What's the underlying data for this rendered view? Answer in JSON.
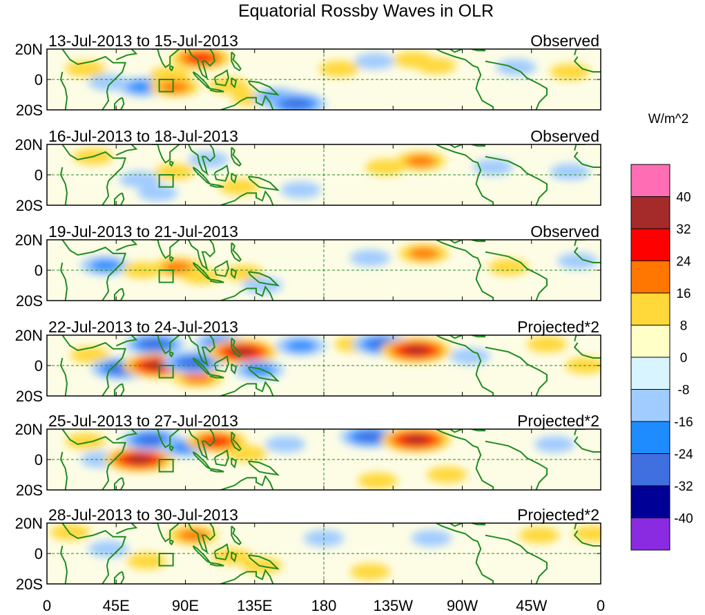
{
  "chart_data": {
    "type": "heatmap",
    "title": "Equatorial Rossby Waves in OLR",
    "units": "W/m^2",
    "x_ticks": [
      "0",
      "45E",
      "90E",
      "135E",
      "180",
      "135W",
      "90W",
      "45W",
      "0"
    ],
    "x_range_deg_east": [
      0,
      360
    ],
    "y_ticks": [
      "20N",
      "0",
      "20S"
    ],
    "y_range_deg": [
      -20,
      20
    ],
    "colorbar": {
      "levels": [
        "40",
        "32",
        "24",
        "16",
        "8",
        "0",
        "-8",
        "-16",
        "-24",
        "-32",
        "-40"
      ],
      "colors": [
        "#ff6eb4",
        "#a52a2a",
        "#ff0000",
        "#ff7700",
        "#ffd83a",
        "#ffffc8",
        "#d8f4ff",
        "#a0ccff",
        "#1e8cff",
        "#4070e0",
        "#000096",
        "#8a2be2"
      ]
    },
    "panels": [
      {
        "period": "13-Jul-2013 to 15-Jul-2013",
        "kind": "Observed",
        "anomalies": [
          {
            "lon": 25,
            "lat": 7,
            "value": 8
          },
          {
            "lon": 40,
            "lat": -2,
            "value": -8
          },
          {
            "lon": 62,
            "lat": -5,
            "value": -16
          },
          {
            "lon": 80,
            "lat": 3,
            "value": 8
          },
          {
            "lon": 83,
            "lat": -5,
            "value": 16
          },
          {
            "lon": 100,
            "lat": 14,
            "value": 24
          },
          {
            "lon": 118,
            "lat": -4,
            "value": 8
          },
          {
            "lon": 133,
            "lat": -12,
            "value": 8
          },
          {
            "lon": 150,
            "lat": -12,
            "value": -16
          },
          {
            "lon": 162,
            "lat": -16,
            "value": -24
          },
          {
            "lon": 190,
            "lat": 7,
            "value": 8
          },
          {
            "lon": 213,
            "lat": 12,
            "value": -8
          },
          {
            "lon": 238,
            "lat": 13,
            "value": 8
          },
          {
            "lon": 253,
            "lat": 9,
            "value": 8
          },
          {
            "lon": 305,
            "lat": 8,
            "value": -8
          },
          {
            "lon": 340,
            "lat": 5,
            "value": 8
          }
        ]
      },
      {
        "period": "16-Jul-2013 to 18-Jul-2013",
        "kind": "Observed",
        "anomalies": [
          {
            "lon": 30,
            "lat": 12,
            "value": 8
          },
          {
            "lon": 60,
            "lat": -3,
            "value": -8
          },
          {
            "lon": 72,
            "lat": -12,
            "value": -8
          },
          {
            "lon": 83,
            "lat": 2,
            "value": 8
          },
          {
            "lon": 105,
            "lat": 10,
            "value": -8
          },
          {
            "lon": 125,
            "lat": -8,
            "value": 8
          },
          {
            "lon": 165,
            "lat": -10,
            "value": -8
          },
          {
            "lon": 243,
            "lat": 9,
            "value": 16
          },
          {
            "lon": 220,
            "lat": 5,
            "value": 8
          },
          {
            "lon": 290,
            "lat": 5,
            "value": -8
          },
          {
            "lon": 340,
            "lat": 2,
            "value": -8
          }
        ]
      },
      {
        "period": "19-Jul-2013 to 21-Jul-2013",
        "kind": "Observed",
        "anomalies": [
          {
            "lon": 38,
            "lat": 3,
            "value": -16
          },
          {
            "lon": 62,
            "lat": 0,
            "value": 8
          },
          {
            "lon": 85,
            "lat": 2,
            "value": 16
          },
          {
            "lon": 100,
            "lat": -4,
            "value": 8
          },
          {
            "lon": 128,
            "lat": -2,
            "value": 8
          },
          {
            "lon": 140,
            "lat": -10,
            "value": -8
          },
          {
            "lon": 210,
            "lat": 8,
            "value": -8
          },
          {
            "lon": 245,
            "lat": 11,
            "value": 16
          },
          {
            "lon": 300,
            "lat": 2,
            "value": 8
          },
          {
            "lon": 345,
            "lat": 6,
            "value": -8
          }
        ]
      },
      {
        "period": "22-Jul-2013 to 24-Jul-2013",
        "kind": "Projected*2",
        "anomalies": [
          {
            "lon": 28,
            "lat": 7,
            "value": 8
          },
          {
            "lon": 48,
            "lat": -2,
            "value": -24
          },
          {
            "lon": 70,
            "lat": 14,
            "value": -24
          },
          {
            "lon": 72,
            "lat": 0,
            "value": 32
          },
          {
            "lon": 98,
            "lat": -8,
            "value": 16
          },
          {
            "lon": 95,
            "lat": 2,
            "value": -24
          },
          {
            "lon": 112,
            "lat": 15,
            "value": -16
          },
          {
            "lon": 127,
            "lat": 9,
            "value": 32
          },
          {
            "lon": 138,
            "lat": -3,
            "value": -16
          },
          {
            "lon": 165,
            "lat": 13,
            "value": -16
          },
          {
            "lon": 200,
            "lat": 14,
            "value": 8
          },
          {
            "lon": 218,
            "lat": 14,
            "value": -24
          },
          {
            "lon": 240,
            "lat": 10,
            "value": 32
          },
          {
            "lon": 275,
            "lat": 6,
            "value": -8
          },
          {
            "lon": 325,
            "lat": 14,
            "value": 8
          },
          {
            "lon": 350,
            "lat": 0,
            "value": 8
          }
        ]
      },
      {
        "period": "25-Jul-2013 to 27-Jul-2013",
        "kind": "Projected*2",
        "anomalies": [
          {
            "lon": 25,
            "lat": 12,
            "value": 8
          },
          {
            "lon": 35,
            "lat": 0,
            "value": -8
          },
          {
            "lon": 60,
            "lat": 0,
            "value": 32
          },
          {
            "lon": 68,
            "lat": 13,
            "value": -24
          },
          {
            "lon": 90,
            "lat": 8,
            "value": -16
          },
          {
            "lon": 110,
            "lat": 12,
            "value": 24
          },
          {
            "lon": 130,
            "lat": 4,
            "value": 8
          },
          {
            "lon": 155,
            "lat": 10,
            "value": -8
          },
          {
            "lon": 210,
            "lat": 15,
            "value": -24
          },
          {
            "lon": 240,
            "lat": 13,
            "value": 32
          },
          {
            "lon": 215,
            "lat": -14,
            "value": 8
          },
          {
            "lon": 260,
            "lat": -10,
            "value": 8
          },
          {
            "lon": 330,
            "lat": 10,
            "value": -8
          }
        ]
      },
      {
        "period": "28-Jul-2013 to 30-Jul-2013",
        "kind": "Projected*2",
        "anomalies": [
          {
            "lon": 15,
            "lat": 14,
            "value": 8
          },
          {
            "lon": 40,
            "lat": 3,
            "value": -8
          },
          {
            "lon": 65,
            "lat": -5,
            "value": 8
          },
          {
            "lon": 95,
            "lat": 12,
            "value": 16
          },
          {
            "lon": 120,
            "lat": -2,
            "value": 8
          },
          {
            "lon": 140,
            "lat": -8,
            "value": 8
          },
          {
            "lon": 180,
            "lat": 10,
            "value": -8
          },
          {
            "lon": 210,
            "lat": -12,
            "value": 8
          },
          {
            "lon": 250,
            "lat": 10,
            "value": -8
          },
          {
            "lon": 320,
            "lat": 12,
            "value": 8
          },
          {
            "lon": 355,
            "lat": 13,
            "value": 8
          }
        ]
      }
    ]
  }
}
